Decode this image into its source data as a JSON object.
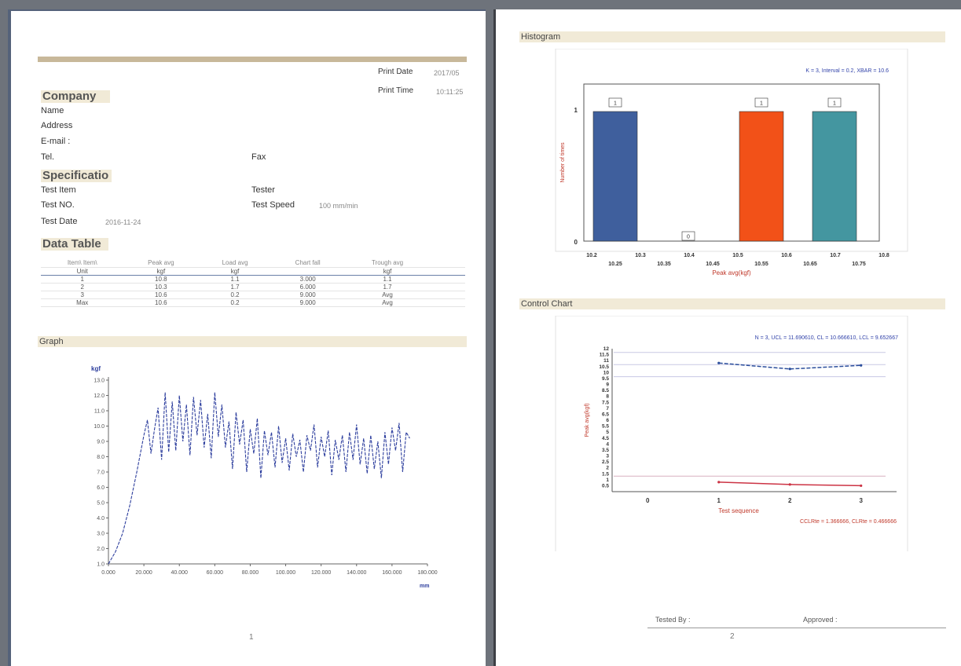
{
  "page1": {
    "print_date_label": "Print Date",
    "print_date_value": "2017/05",
    "print_time_label": "Print Time",
    "print_time_value": "10:11:25",
    "company": {
      "heading": "Company",
      "name_label": "Name",
      "address_label": "Address",
      "email_label": "E-mail :",
      "tel_label": "Tel.",
      "fax_label": "Fax"
    },
    "specification": {
      "heading": "Specificatio",
      "test_item_label": "Test Item",
      "tester_label": "Tester",
      "test_no_label": "Test NO.",
      "test_speed_label": "Test Speed",
      "test_speed_value": "100 mm/min",
      "test_date_label": "Test Date",
      "test_date_value": "2016-11-24"
    },
    "data_table": {
      "heading": "Data Table",
      "headers": [
        "Item\\ Item\\",
        "Peak avg",
        "Load avg",
        "Chart fall",
        "Trough avg",
        "",
        "",
        ""
      ],
      "units": [
        "Unit",
        "kgf",
        "kgf",
        "",
        "kgf",
        "",
        "",
        ""
      ],
      "rows": [
        [
          "1",
          "10.8",
          "1.1",
          "3.000",
          "1.1",
          "",
          "",
          ""
        ],
        [
          "2",
          "10.3",
          "1.7",
          "6.000",
          "1.7",
          "",
          "",
          ""
        ],
        [
          "3",
          "10.6",
          "0.2",
          "9.000",
          "Avg",
          "",
          "",
          ""
        ],
        [
          "Max",
          "10.6",
          "0.2",
          "9.000",
          "Avg",
          "",
          "",
          ""
        ]
      ]
    },
    "graph": {
      "heading": "Graph",
      "y_unit": "kgf",
      "x_unit": "mm",
      "y_ticks": [
        "1.0",
        "2.0",
        "3.0",
        "4.0",
        "5.0",
        "6.0",
        "7.0",
        "8.0",
        "9.0",
        "10.0",
        "11.0",
        "12.0",
        "13.0"
      ],
      "x_ticks": [
        "0.000",
        "20.000",
        "40.000",
        "60.000",
        "80.000",
        "100.000",
        "120.000",
        "140.000",
        "160.000",
        "180.000"
      ]
    },
    "page_number": "1"
  },
  "page2": {
    "histogram": {
      "heading": "Histogram",
      "stats": "K = 3, Interval = 0.2, XBAR = 10.6",
      "ylabel": "Number of times",
      "xlabel": "Peak avg(kgf)",
      "upper_ticks": [
        "10.2",
        "10.3",
        "10.4",
        "10.5",
        "10.6",
        "10.7",
        "10.8"
      ],
      "lower_ticks": [
        "10.25",
        "10.35",
        "10.45",
        "10.55",
        "10.65",
        "10.75"
      ],
      "y_ticks": [
        "0",
        "1"
      ],
      "bar_labels": [
        "1",
        "0",
        "1",
        "1"
      ]
    },
    "control_chart": {
      "heading": "Control Chart",
      "stats": "N = 3, UCL = 11.690610, CL = 10.666610, LCL = 9.652667",
      "ylabel": "Peak avg(kgf)",
      "xlabel": "Test sequence",
      "cap": "CCLRte = 1.366666, CLRte = 0.466666",
      "y_ticks": [
        "0.5",
        "1",
        "1.5",
        "2",
        "2.5",
        "3",
        "3.5",
        "4",
        "4.5",
        "5",
        "5.5",
        "6",
        "6.5",
        "7",
        "7.5",
        "8",
        "8.5",
        "9",
        "9.5",
        "10",
        "10.5",
        "11",
        "11.5",
        "12"
      ],
      "x_ticks": [
        "0",
        "1",
        "2",
        "3"
      ]
    },
    "tested_by_label": "Tested By :",
    "approved_label": "Approved :",
    "page_number": "2"
  },
  "chart_data": [
    {
      "type": "bar",
      "title": "Histogram",
      "xlabel": "Peak avg(kgf)",
      "ylabel": "Number of times",
      "categories": [
        "10.25",
        "10.45",
        "10.65",
        "10.75"
      ],
      "values": [
        1,
        0,
        1,
        1
      ],
      "colors": [
        "#3f5f9d",
        "#cccccc",
        "#f25118",
        "#4496a0"
      ],
      "ylim": [
        0,
        1
      ]
    },
    {
      "type": "line",
      "title": "Control Chart",
      "xlabel": "Test sequence",
      "ylabel": "Peak avg(kgf)",
      "x": [
        1,
        2,
        3
      ],
      "series": [
        {
          "values": [
            10.8,
            10.3,
            10.6
          ],
          "color": "#2b4e9c"
        },
        {
          "values": [
            0.8,
            0.6,
            0.5
          ],
          "color": "#cc3344"
        }
      ],
      "reference_lines": {
        "UCL": 11.69061,
        "CL": 10.66661,
        "LCL": 9.652667
      },
      "xlim": [
        -0.5,
        3.5
      ],
      "ylim": [
        0,
        12
      ]
    },
    {
      "type": "line",
      "title": "Graph",
      "xlabel": "mm",
      "ylabel": "kgf",
      "x": [
        0,
        4,
        8,
        12,
        16,
        20,
        22,
        24,
        26,
        28,
        30,
        32,
        34,
        36,
        38,
        40,
        42,
        44,
        46,
        48,
        50,
        52,
        54,
        56,
        58,
        60,
        62,
        64,
        66,
        68,
        70,
        72,
        74,
        76,
        78,
        80,
        82,
        84,
        86,
        88,
        90,
        92,
        94,
        96,
        98,
        100,
        102,
        104,
        106,
        108,
        110,
        112,
        114,
        116,
        118,
        120,
        122,
        124,
        126,
        128,
        130,
        132,
        134,
        136,
        138,
        140,
        142,
        144,
        146,
        148,
        150,
        152,
        154,
        156,
        158,
        160,
        162,
        164,
        166,
        168,
        170
      ],
      "series": [
        {
          "values": [
            1.0,
            1.8,
            3.0,
            4.8,
            7.0,
            9.4,
            10.4,
            8.2,
            9.8,
            11.2,
            7.8,
            12.2,
            8.3,
            11.6,
            8.4,
            12.0,
            9.0,
            11.4,
            8.1,
            11.9,
            9.4,
            11.7,
            8.6,
            10.8,
            7.9,
            12.2,
            9.3,
            11.4,
            8.6,
            10.3,
            7.2,
            10.9,
            8.8,
            10.4,
            7.0,
            9.8,
            8.2,
            10.5,
            6.6,
            9.7,
            8.1,
            9.6,
            7.3,
            10.0,
            7.6,
            9.2,
            7.1,
            9.5,
            8.0,
            9.1,
            7.0,
            9.4,
            8.4,
            10.1,
            7.3,
            9.3,
            8.0,
            9.7,
            6.8,
            9.1,
            7.8,
            9.4,
            7.0,
            9.6,
            7.8,
            10.1,
            7.5,
            9.2,
            6.9,
            9.4,
            7.2,
            9.0,
            6.6,
            9.6,
            7.5,
            9.9,
            8.4,
            10.2,
            7.0,
            9.6,
            9.2
          ],
          "color": "#2e3f9e"
        }
      ],
      "xlim": [
        0,
        180
      ],
      "ylim": [
        1,
        13
      ]
    }
  ]
}
